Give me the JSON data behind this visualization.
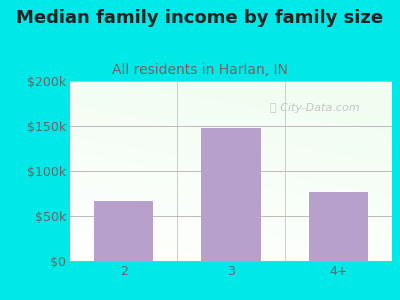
{
  "title": "Median family income by family size",
  "subtitle": "All residents in Harlan, IN",
  "categories": [
    "2",
    "3",
    "4+"
  ],
  "values": [
    67000,
    148000,
    77000
  ],
  "bar_color": "#b8a0cc",
  "outer_bg": "#00e8e8",
  "title_color": "#222222",
  "subtitle_color": "#7a6060",
  "tick_color": "#666666",
  "ymin": 0,
  "ymax": 200000,
  "yticks": [
    0,
    50000,
    100000,
    150000,
    200000
  ],
  "ytick_labels": [
    "$0",
    "$50k",
    "$100k",
    "$150k",
    "$200k"
  ],
  "watermark": "City-Data.com",
  "title_fontsize": 13,
  "subtitle_fontsize": 10,
  "tick_fontsize": 9
}
